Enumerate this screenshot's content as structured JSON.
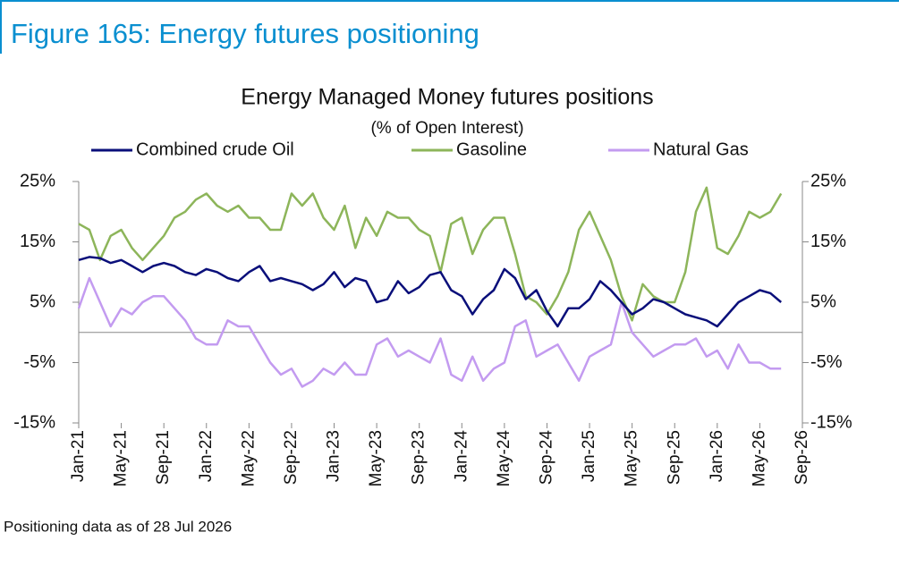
{
  "chart_data": {
    "type": "line",
    "figure_title": "Figure 165: Energy futures positioning",
    "title": "Energy Managed Money futures positions",
    "subtitle": "(% of Open Interest)",
    "footnote": "Positioning data as of 28 Jul 2026",
    "categories": [
      "Jan-21",
      null,
      null,
      null,
      "May-21",
      null,
      null,
      null,
      "Sep-21",
      null,
      null,
      null,
      "Jan-22",
      null,
      null,
      null,
      "May-22",
      null,
      null,
      null,
      "Sep-22",
      null,
      null,
      null,
      "Jan-23",
      null,
      null,
      null,
      "May-23",
      null,
      null,
      null,
      "Sep-23",
      null,
      null,
      null,
      "Jan-24",
      null,
      null,
      null,
      "May-24",
      null,
      null,
      null,
      "Sep-24",
      null,
      null,
      null,
      "Jan-25",
      null,
      null,
      null,
      "May-25",
      null,
      null,
      null,
      "Sep-25",
      null,
      null,
      null,
      "Jan-26",
      null,
      null,
      null,
      "May-26",
      null,
      null,
      null,
      "Sep-26"
    ],
    "series": [
      {
        "name": "Combined crude Oil",
        "color": "#0a0f7a",
        "values": [
          12,
          12.5,
          12.3,
          11.5,
          12,
          11,
          10,
          11,
          11.5,
          11,
          10,
          9.5,
          10.5,
          10,
          9,
          8.5,
          10,
          11,
          8.5,
          9,
          8.5,
          8,
          7,
          8,
          10,
          7.5,
          9,
          8.5,
          5,
          5.5,
          8.5,
          6.5,
          7.5,
          9.5,
          10,
          7,
          6,
          3,
          5.5,
          7,
          10.5,
          9,
          5.5,
          7,
          3.5,
          1,
          4,
          4,
          5.5,
          8.5,
          7,
          5,
          3,
          4,
          5.5,
          5,
          4,
          3,
          2.5,
          2,
          1,
          3,
          5,
          6,
          7,
          6.5,
          5,
          null,
          null
        ]
      },
      {
        "name": "Gasoline",
        "color": "#8db55a",
        "values": [
          18,
          17,
          12,
          16,
          17,
          14,
          12,
          14,
          16,
          19,
          20,
          22,
          23,
          21,
          20,
          21,
          19,
          19,
          17,
          17,
          23,
          21,
          23,
          19,
          17,
          21,
          14,
          19,
          16,
          20,
          19,
          19,
          17,
          16,
          10,
          18,
          19,
          13,
          17,
          19,
          19,
          13,
          6,
          5,
          3,
          6,
          10,
          17,
          20,
          16,
          12,
          6,
          2,
          8,
          6,
          5,
          5,
          10,
          20,
          24,
          14,
          13,
          16,
          20,
          19,
          20,
          23,
          null,
          null
        ]
      },
      {
        "name": "Natural Gas",
        "color": "#c39bf0",
        "values": [
          4,
          9,
          5,
          1,
          4,
          3,
          5,
          6,
          6,
          4,
          2,
          -1,
          -2,
          -2,
          2,
          1,
          1,
          -2,
          -5,
          -7,
          -6,
          -9,
          -8,
          -6,
          -7,
          -5,
          -7,
          -7,
          -2,
          -1,
          -4,
          -3,
          -4,
          -5,
          -1,
          -7,
          -8,
          -4,
          -8,
          -6,
          -5,
          1,
          2,
          -4,
          -3,
          -2,
          -5,
          -8,
          -4,
          -3,
          -2,
          5,
          0,
          -2,
          -4,
          -3,
          -2,
          -2,
          -1,
          -4,
          -3,
          -6,
          -2,
          -5,
          -5,
          -6,
          -6,
          null,
          null
        ]
      }
    ],
    "ylim": [
      -15,
      25
    ],
    "yticks": [
      {
        "value": -15,
        "label": "-15%"
      },
      {
        "value": -5,
        "label": "-5%"
      },
      {
        "value": 5,
        "label": "5%"
      },
      {
        "value": 15,
        "label": "15%"
      },
      {
        "value": 25,
        "label": "25%"
      }
    ],
    "y2lim": [
      -15,
      25
    ],
    "y2ticks": [
      {
        "value": -15,
        "label": "-15%"
      },
      {
        "value": -5,
        "label": "-5%"
      },
      {
        "value": 5,
        "label": "5%"
      },
      {
        "value": 15,
        "label": "15%"
      },
      {
        "value": 25,
        "label": "25%"
      }
    ]
  }
}
